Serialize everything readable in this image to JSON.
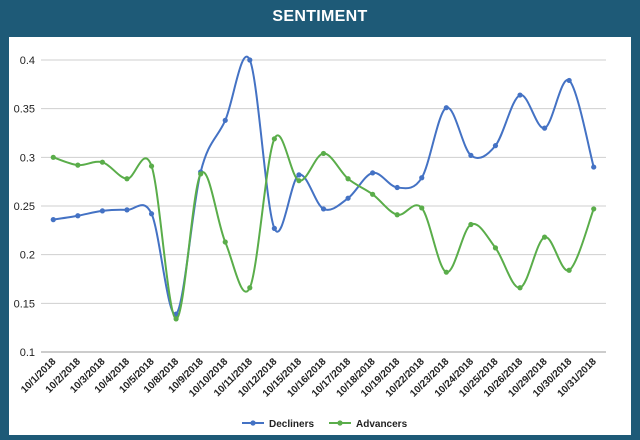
{
  "chart_data": {
    "type": "line",
    "title": "SENTIMENT",
    "xlabel": "",
    "ylabel": "",
    "categories": [
      "10/1/2018",
      "10/2/2018",
      "10/3/2018",
      "10/4/2018",
      "10/5/2018",
      "10/8/2018",
      "10/9/2018",
      "10/10/2018",
      "10/11/2018",
      "10/12/2018",
      "10/15/2018",
      "10/16/2018",
      "10/17/2018",
      "10/18/2018",
      "10/19/2018",
      "10/22/2018",
      "10/23/2018",
      "10/24/2018",
      "10/25/2018",
      "10/26/2018",
      "10/29/2018",
      "10/30/2018",
      "10/31/2018"
    ],
    "ylim": [
      0.1,
      0.4
    ],
    "yticks": [
      "0.1",
      "0.15",
      "0.2",
      "0.25",
      "0.3",
      "0.35",
      "0.4"
    ],
    "grid": true,
    "smooth": true,
    "legend": "bottom",
    "series": [
      {
        "name": "Decliners",
        "color": "#4472c4",
        "values": [
          0.236,
          0.24,
          0.245,
          0.246,
          0.242,
          0.139,
          0.285,
          0.338,
          0.4,
          0.227,
          0.282,
          0.247,
          0.258,
          0.284,
          0.269,
          0.279,
          0.351,
          0.302,
          0.312,
          0.364,
          0.33,
          0.379,
          0.29
        ]
      },
      {
        "name": "Advancers",
        "color": "#5aad4a",
        "values": [
          0.3,
          0.292,
          0.295,
          0.278,
          0.291,
          0.134,
          0.283,
          0.213,
          0.166,
          0.319,
          0.276,
          0.304,
          0.278,
          0.262,
          0.241,
          0.248,
          0.182,
          0.231,
          0.207,
          0.166,
          0.218,
          0.184,
          0.247
        ]
      }
    ]
  }
}
